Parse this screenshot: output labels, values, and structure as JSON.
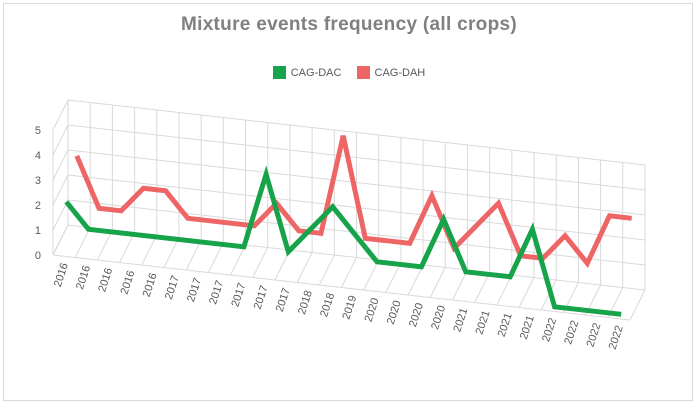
{
  "chart_data": {
    "type": "line",
    "title": "Mixture events frequency (all crops)",
    "xlabel": "",
    "ylabel": "",
    "ylim": [
      0,
      5
    ],
    "yticks": [
      "0",
      "1",
      "2",
      "3",
      "4",
      "5"
    ],
    "categories": [
      "2016",
      "2016",
      "2016",
      "2016",
      "2016",
      "2017",
      "2017",
      "2017",
      "2017",
      "2017",
      "2017",
      "2018",
      "2018",
      "2019",
      "2020",
      "2020",
      "2020",
      "2020",
      "2021",
      "2021",
      "2021",
      "2021",
      "2022",
      "2022",
      "2022",
      "2022"
    ],
    "series": [
      {
        "name": "CAG-DAC",
        "color": "#16a34a",
        "values": [
          2,
          1,
          1,
          1,
          1,
          1,
          1,
          1,
          1,
          4,
          1,
          2,
          3,
          2,
          1,
          1,
          1,
          3,
          1,
          1,
          1,
          3,
          0,
          0,
          0,
          0
        ]
      },
      {
        "name": "CAG-DAH",
        "color": "#ee6565",
        "values": [
          3,
          1,
          1,
          2,
          2,
          1,
          1,
          1,
          1,
          2,
          1,
          1,
          5,
          1,
          1,
          1,
          3,
          1,
          2,
          3,
          1,
          1,
          2,
          1,
          3,
          3
        ]
      }
    ],
    "grid": true,
    "legend_position": "top"
  }
}
